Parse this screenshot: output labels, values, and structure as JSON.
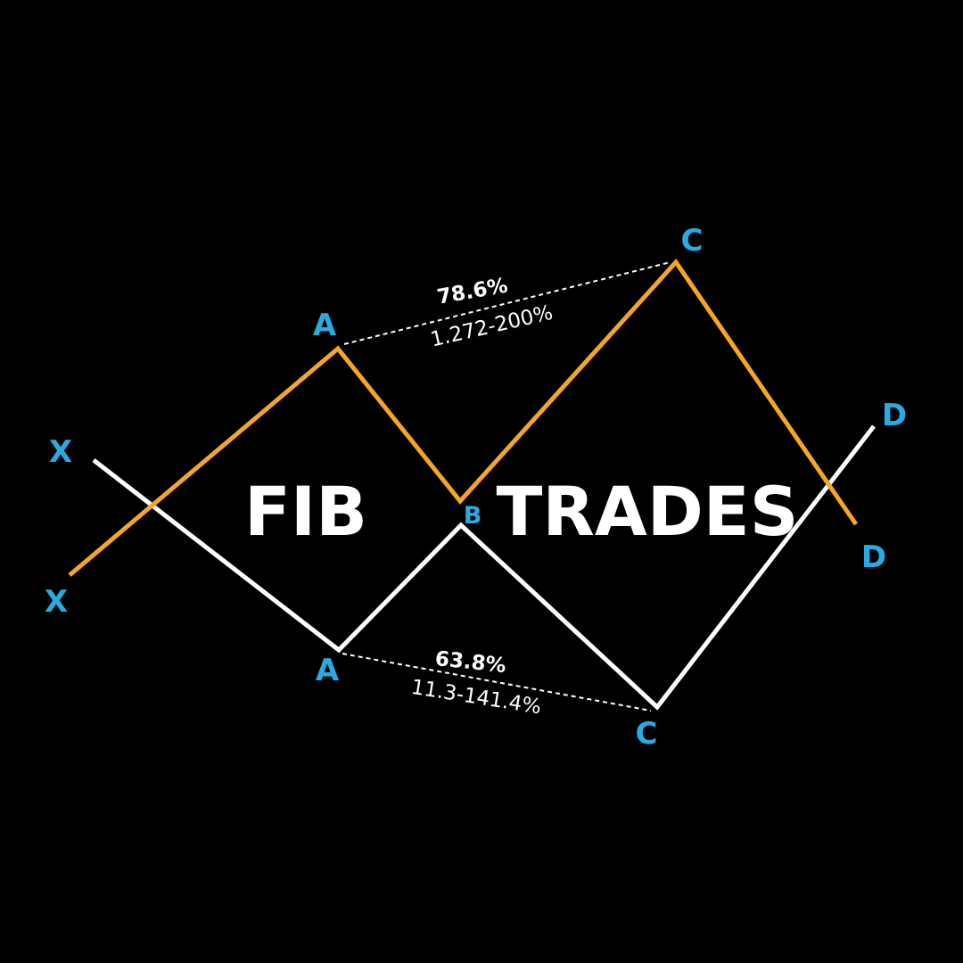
{
  "colors": {
    "background": "#000000",
    "bullish_line": "#F5A623",
    "bearish_line": "#FFFFFF",
    "point_label": "#29ABE2",
    "text": "#FFFFFF",
    "ratio_connector": "#FFFFFF"
  },
  "title": {
    "word_1": "FIB",
    "word_2": "TRADES"
  },
  "patterns": {
    "orange": {
      "name": "",
      "points": {
        "X": "X",
        "A": "A",
        "B": "B",
        "C": "C",
        "D": "D"
      },
      "ratio": {
        "bold": "78.6%",
        "range": "1.272-200%"
      }
    },
    "white": {
      "name": "",
      "points": {
        "X": "X",
        "A": "A",
        "B": "B",
        "C": "C",
        "D": "D"
      },
      "ratio": {
        "bold": "63.8%",
        "range": "11.3-141.4%"
      }
    }
  }
}
